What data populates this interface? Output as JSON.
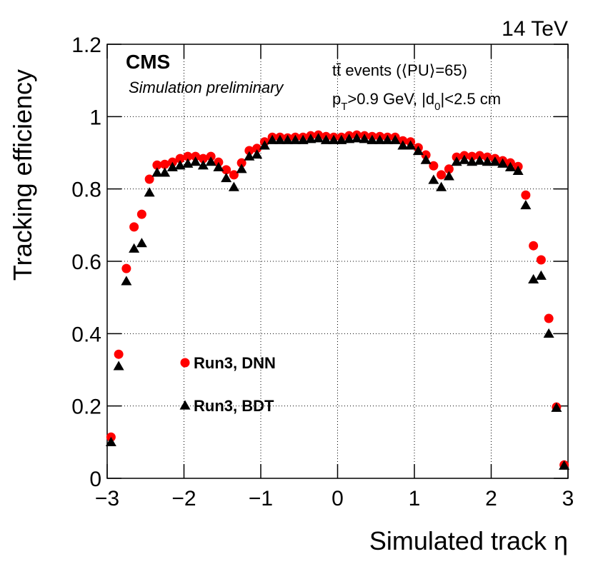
{
  "chart_data": {
    "type": "scatter",
    "energy_label": "14 TeV",
    "experiment": "CMS",
    "subtitle": "Simulation preliminary",
    "annotation_line1": "tt̄ events (⟨PU⟩=65)",
    "annotation_line2": [
      "p",
      "T",
      ">0.9 GeV, |d",
      "0",
      "|<2.5 cm"
    ],
    "x_label": "Simulated track η",
    "y_label": "Tracking efficiency",
    "xlim": [
      -3,
      3
    ],
    "ylim": [
      0,
      1.2
    ],
    "xticks": [
      {
        "value": -3,
        "label": "−3"
      },
      {
        "value": -2,
        "label": "−2"
      },
      {
        "value": -1,
        "label": "−1"
      },
      0,
      1,
      2,
      3
    ],
    "yticks": [
      0,
      0.2,
      0.4,
      0.6,
      0.8,
      1,
      1.2
    ],
    "grid": true,
    "x": [
      -2.95,
      -2.85,
      -2.75,
      -2.65,
      -2.55,
      -2.45,
      -2.35,
      -2.25,
      -2.15,
      -2.05,
      -1.95,
      -1.85,
      -1.75,
      -1.65,
      -1.55,
      -1.45,
      -1.35,
      -1.25,
      -1.15,
      -1.05,
      -0.95,
      -0.85,
      -0.75,
      -0.65,
      -0.55,
      -0.45,
      -0.35,
      -0.25,
      -0.15,
      -0.05,
      0.05,
      0.15,
      0.25,
      0.35,
      0.45,
      0.55,
      0.65,
      0.75,
      0.85,
      0.95,
      1.05,
      1.15,
      1.25,
      1.35,
      1.45,
      1.55,
      1.65,
      1.75,
      1.85,
      1.95,
      2.05,
      2.15,
      2.25,
      2.35,
      2.45,
      2.55,
      2.65,
      2.75,
      2.85,
      2.95
    ],
    "series": [
      {
        "name": "Run3, DNN",
        "color": "#ff0000",
        "marker": "circle",
        "values": [
          0.114,
          0.343,
          0.58,
          0.695,
          0.73,
          0.827,
          0.866,
          0.868,
          0.874,
          0.884,
          0.89,
          0.89,
          0.884,
          0.89,
          0.874,
          0.853,
          0.839,
          0.872,
          0.906,
          0.912,
          0.93,
          0.943,
          0.943,
          0.941,
          0.943,
          0.943,
          0.947,
          0.949,
          0.945,
          0.943,
          0.943,
          0.947,
          0.949,
          0.947,
          0.945,
          0.945,
          0.943,
          0.943,
          0.933,
          0.93,
          0.914,
          0.894,
          0.864,
          0.839,
          0.855,
          0.888,
          0.892,
          0.89,
          0.892,
          0.888,
          0.884,
          0.878,
          0.872,
          0.862,
          0.783,
          0.643,
          0.604,
          0.442,
          0.197,
          0.037
        ]
      },
      {
        "name": "Run3, BDT",
        "color": "#000000",
        "marker": "triangle",
        "values": [
          0.1,
          0.31,
          0.545,
          0.635,
          0.65,
          0.79,
          0.845,
          0.845,
          0.86,
          0.865,
          0.87,
          0.875,
          0.865,
          0.875,
          0.86,
          0.83,
          0.805,
          0.855,
          0.89,
          0.895,
          0.92,
          0.935,
          0.935,
          0.935,
          0.935,
          0.935,
          0.938,
          0.94,
          0.935,
          0.935,
          0.935,
          0.938,
          0.94,
          0.938,
          0.935,
          0.935,
          0.935,
          0.935,
          0.92,
          0.92,
          0.905,
          0.88,
          0.825,
          0.805,
          0.835,
          0.875,
          0.88,
          0.875,
          0.878,
          0.875,
          0.875,
          0.87,
          0.86,
          0.85,
          0.755,
          0.55,
          0.56,
          0.4,
          0.195,
          0.035
        ]
      }
    ]
  }
}
